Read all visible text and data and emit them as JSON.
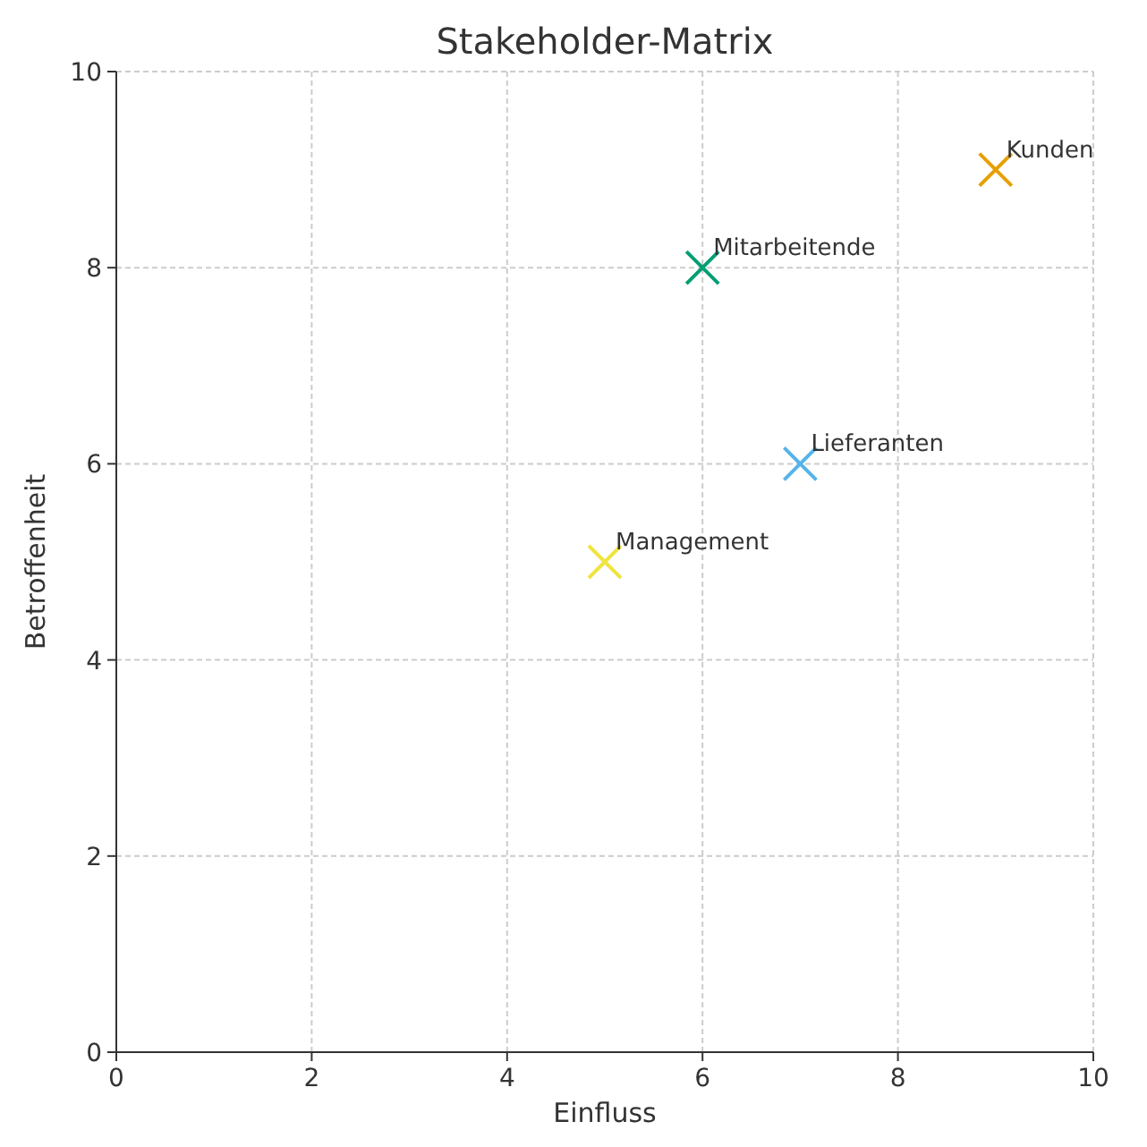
{
  "chart_data": {
    "type": "scatter",
    "title": "Stakeholder-Matrix",
    "xlabel": "Einfluss",
    "ylabel": "Betroffenheit",
    "xlim": [
      0,
      10
    ],
    "ylim": [
      0,
      10
    ],
    "xticks": [
      0,
      2,
      4,
      6,
      8,
      10
    ],
    "yticks": [
      0,
      2,
      4,
      6,
      8,
      10
    ],
    "grid": true,
    "marker": "cross",
    "series": [
      {
        "name": "Management",
        "color": "#f0e442",
        "x": [
          5
        ],
        "values": [
          5
        ]
      },
      {
        "name": "Mitarbeitende",
        "color": "#009e73",
        "x": [
          6
        ],
        "values": [
          8
        ]
      },
      {
        "name": "Kunden",
        "color": "#e69f00",
        "x": [
          9
        ],
        "values": [
          9
        ]
      },
      {
        "name": "Lieferanten",
        "color": "#56b4e9",
        "x": [
          7
        ],
        "values": [
          6
        ]
      }
    ]
  }
}
